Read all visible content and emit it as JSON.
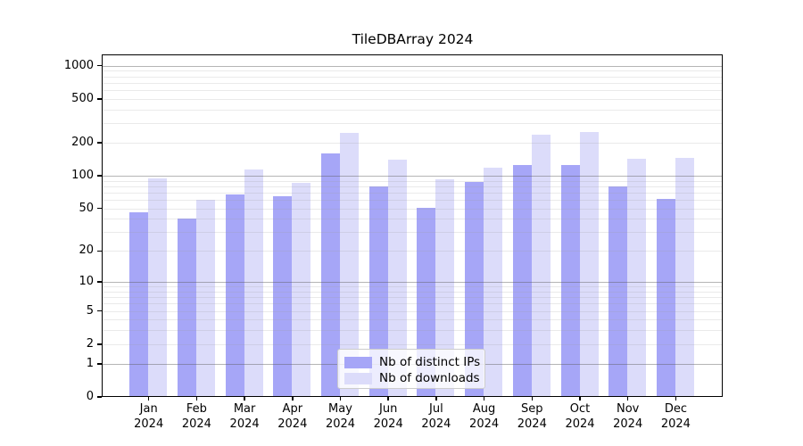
{
  "chart_data": {
    "type": "bar",
    "title": "TileDBArray 2024",
    "categories": [
      "Jan 2024",
      "Feb 2024",
      "Mar 2024",
      "Apr 2024",
      "May 2024",
      "Jun 2024",
      "Jul 2024",
      "Aug 2024",
      "Sep 2024",
      "Oct 2024",
      "Nov 2024",
      "Dec 2024"
    ],
    "series": [
      {
        "name": "Nb of distinct IPs",
        "color": "#a6a6f7",
        "values": [
          46,
          40,
          67,
          65,
          160,
          80,
          51,
          87,
          124,
          126,
          79,
          61
        ]
      },
      {
        "name": "Nb of downloads",
        "color": "#dcdcfa",
        "values": [
          95,
          60,
          114,
          86,
          245,
          140,
          92,
          118,
          238,
          248,
          142,
          146
        ]
      }
    ],
    "xlabel": "",
    "ylabel": "",
    "yscale": "log1p",
    "ylim": [
      0,
      1265
    ],
    "y_ticks": [
      1000,
      500,
      200,
      100,
      50,
      20,
      10,
      5,
      2,
      1,
      0
    ],
    "y_grid_major": [
      1,
      10,
      100,
      1000
    ],
    "grid": "horizontal-major-and-minor",
    "legend_position": "inside-bottom-center",
    "spine_color": "#000000",
    "background_color": "#ffffff"
  }
}
